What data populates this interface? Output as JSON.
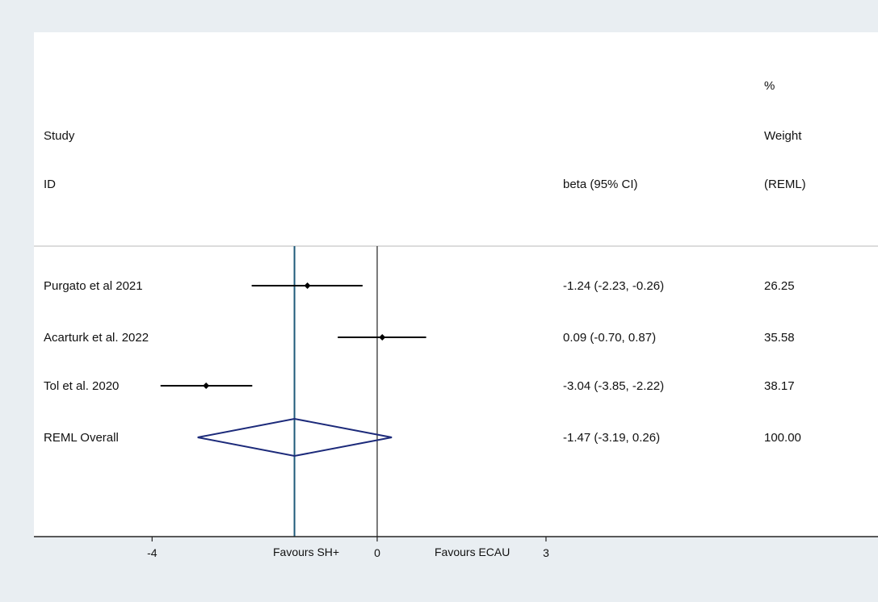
{
  "header": {
    "study_label": "Study",
    "id_label": "ID",
    "effect_label": "beta (95% CI)",
    "weight_label_line1": "%",
    "weight_label_line2": "Weight",
    "weight_label_line3": "(REML)"
  },
  "footer": {
    "favours_left": "Favours SH+",
    "favours_right": "Favours ECAU"
  },
  "colors": {
    "background": "#e9eef2",
    "plot_area": "#ffffff",
    "overall_line": "#1f5a7a",
    "diamond": "#1c2a7a",
    "points": "#000000"
  },
  "chart_data": {
    "type": "forest",
    "xlim": [
      -6.1,
      8.9
    ],
    "ticks": [
      {
        "value": -4,
        "label": "-4"
      },
      {
        "value": 0,
        "label": "0"
      },
      {
        "value": 3,
        "label": "3"
      }
    ],
    "null_line": 0,
    "overall_line": -1.47,
    "studies": [
      {
        "name": "Purgato et al 2021",
        "beta": -1.24,
        "lo": -2.23,
        "hi": -0.26,
        "ci_text": "-1.24 (-2.23, -0.26)",
        "weight": "26.25"
      },
      {
        "name": "Acarturk et al. 2022",
        "beta": 0.09,
        "lo": -0.7,
        "hi": 0.87,
        "ci_text": "0.09 (-0.70, 0.87)",
        "weight": "35.58"
      },
      {
        "name": "Tol et al. 2020",
        "beta": -3.04,
        "lo": -3.85,
        "hi": -2.22,
        "ci_text": "-3.04 (-3.85, -2.22)",
        "weight": "38.17"
      }
    ],
    "overall": {
      "name": "REML Overall",
      "beta": -1.47,
      "lo": -3.19,
      "hi": 0.26,
      "ci_text": "-1.47 (-3.19, 0.26)",
      "weight": "100.00"
    }
  }
}
